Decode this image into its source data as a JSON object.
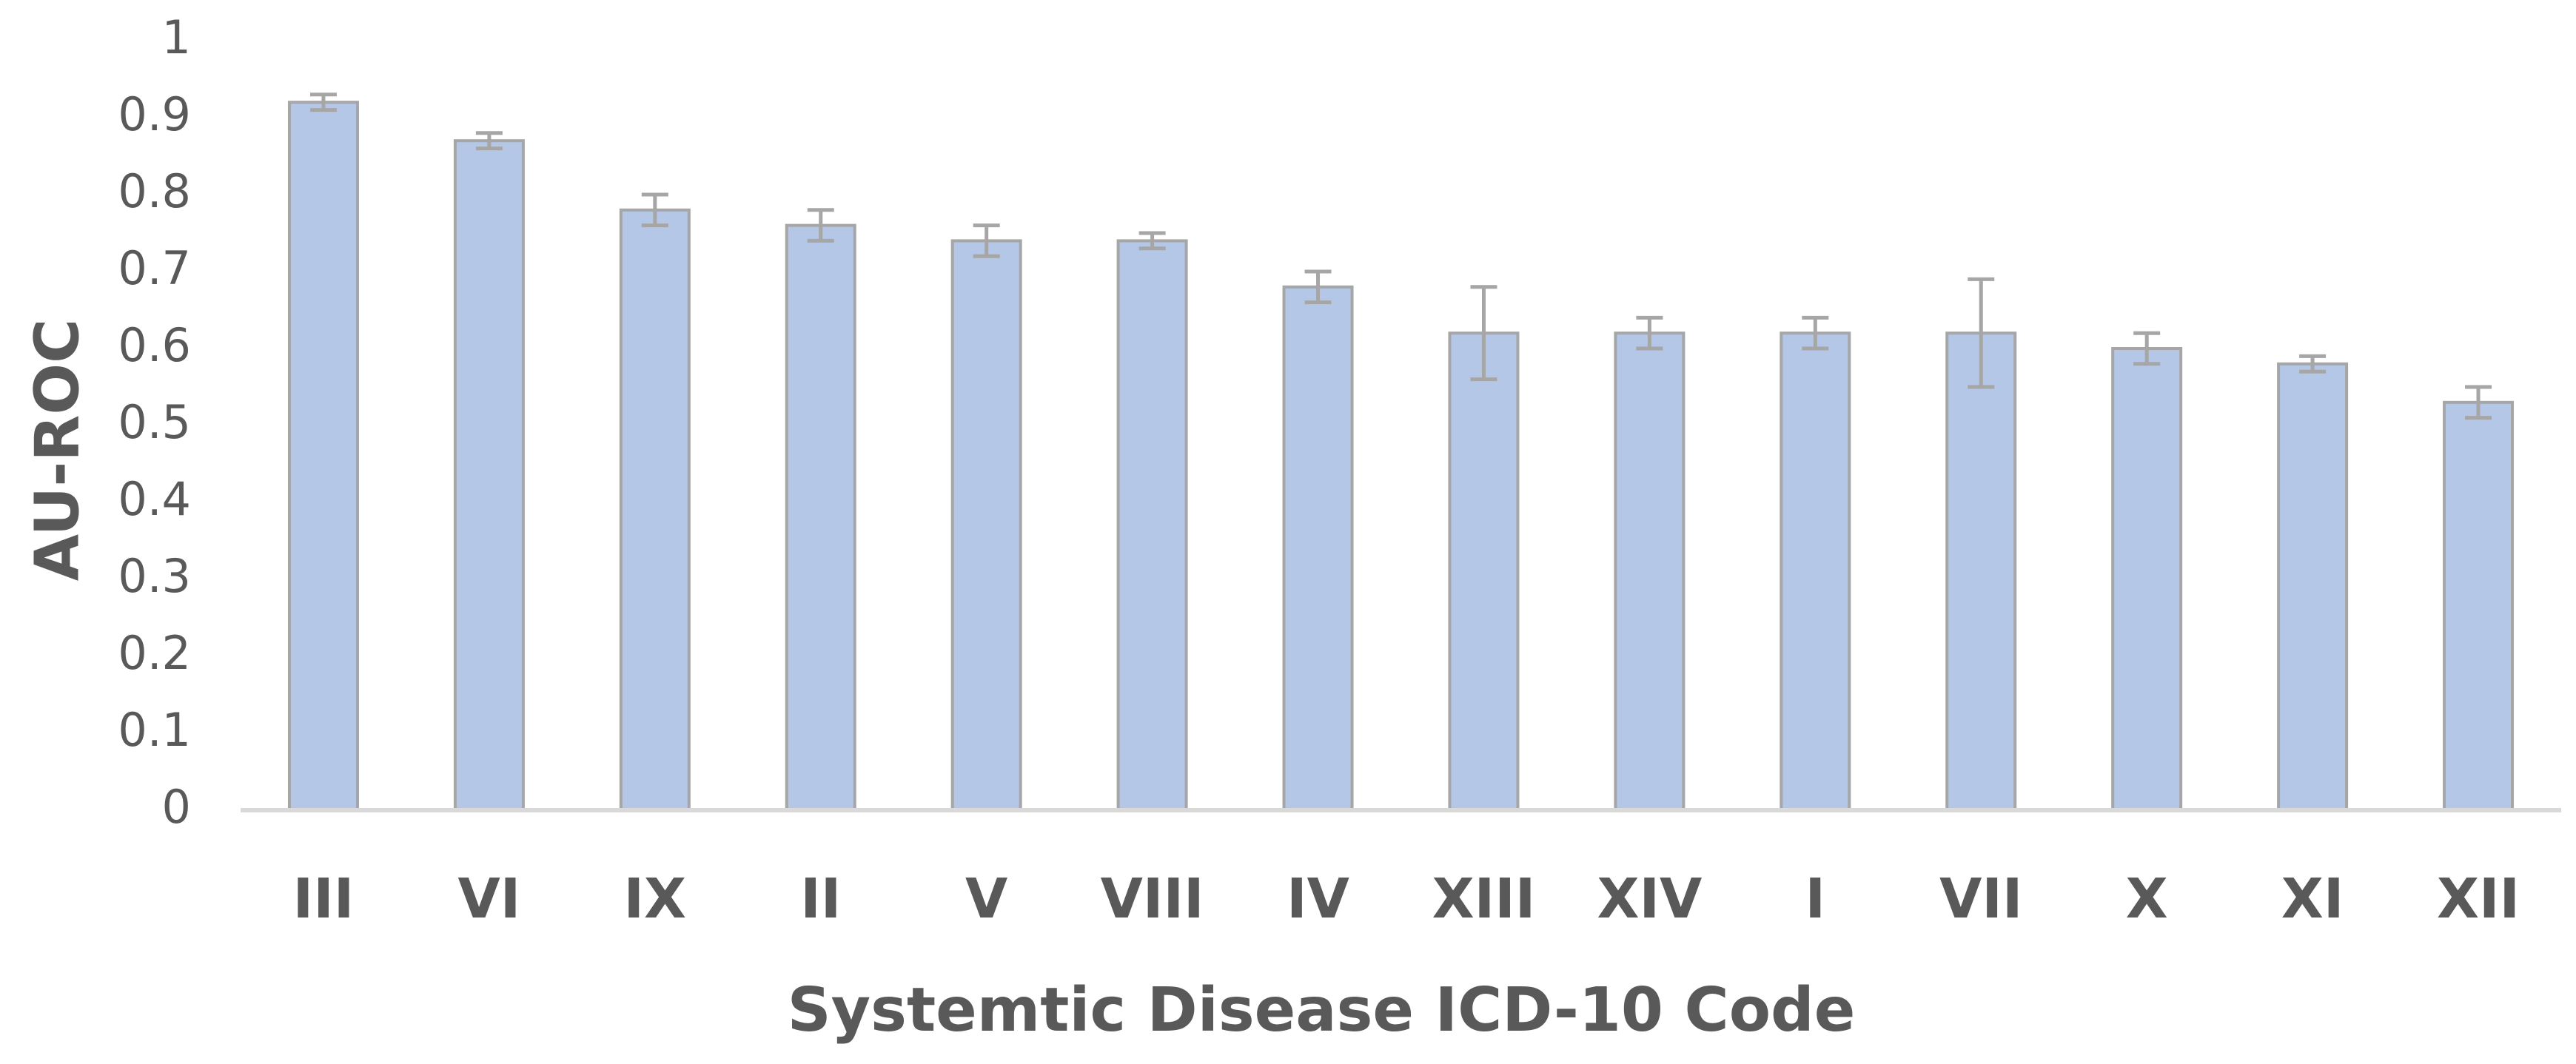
{
  "chart_data": {
    "type": "bar",
    "title": "",
    "xlabel": "Systemtic Disease ICD-10 Code",
    "ylabel": "AU-ROC",
    "ylim": [
      0,
      1
    ],
    "yticks": [
      "0",
      "0.1",
      "0.2",
      "0.3",
      "0.4",
      "0.5",
      "0.6",
      "0.7",
      "0.8",
      "0.9",
      "1"
    ],
    "grid": false,
    "legend": "none",
    "categories": [
      "III",
      "VI",
      "IX",
      "II",
      "V",
      "VIII",
      "IV",
      "XIII",
      "XIV",
      "I",
      "VII",
      "X",
      "XI",
      "XII"
    ],
    "values": [
      0.92,
      0.87,
      0.78,
      0.76,
      0.74,
      0.74,
      0.68,
      0.62,
      0.62,
      0.62,
      0.62,
      0.6,
      0.58,
      0.53
    ],
    "error": [
      0.01,
      0.01,
      0.02,
      0.02,
      0.02,
      0.01,
      0.02,
      0.06,
      0.02,
      0.02,
      0.07,
      0.02,
      0.01,
      0.02
    ],
    "colors": {
      "bar_fill": "#b4c7e7",
      "bar_stroke": "#a6a6a6",
      "error_bar": "#a6a6a6",
      "axis_line": "#d9d9d9",
      "text": "#595959"
    }
  }
}
